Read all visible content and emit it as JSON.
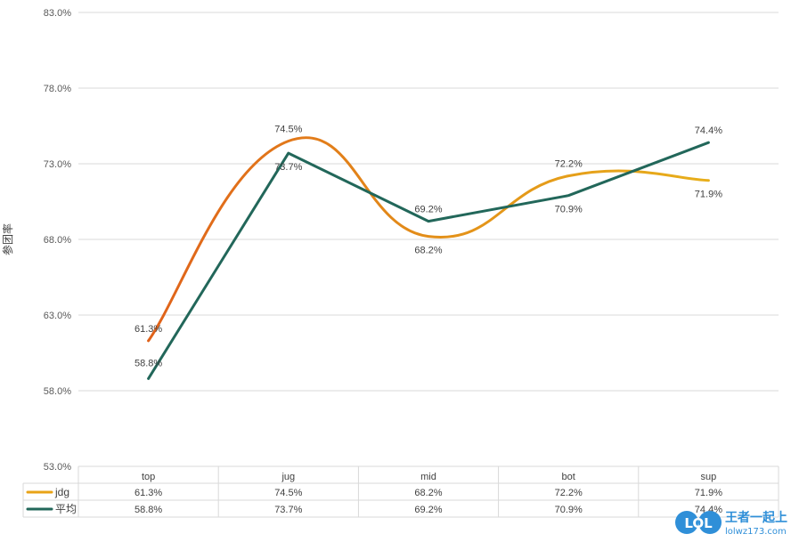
{
  "chart_data": {
    "type": "line",
    "ylabel": "参团率",
    "categories": [
      "top",
      "jug",
      "mid",
      "bot",
      "sup"
    ],
    "ylim": [
      53,
      83
    ],
    "yticks": [
      53,
      58,
      63,
      68,
      73,
      78,
      83
    ],
    "ytick_labels": [
      "53.0%",
      "58.0%",
      "63.0%",
      "68.0%",
      "73.0%",
      "78.0%",
      "83.0%"
    ],
    "grid": true,
    "legend": "data-table",
    "series": [
      {
        "name": "jdg",
        "values": [
          61.3,
          74.5,
          68.2,
          72.2,
          71.9
        ],
        "labels": [
          "61.3%",
          "74.5%",
          "68.2%",
          "72.2%",
          "71.9%"
        ],
        "colors": [
          "#e0621a",
          "#e8a317"
        ]
      },
      {
        "name": "平均",
        "values": [
          58.8,
          73.7,
          69.2,
          70.9,
          74.4
        ],
        "labels": [
          "58.8%",
          "73.7%",
          "69.2%",
          "70.9%",
          "74.4%"
        ],
        "colors": [
          "#22675a"
        ]
      }
    ]
  },
  "watermark": {
    "logo": "LOL",
    "text": "王者一起上",
    "url": "lolwz173.com"
  }
}
